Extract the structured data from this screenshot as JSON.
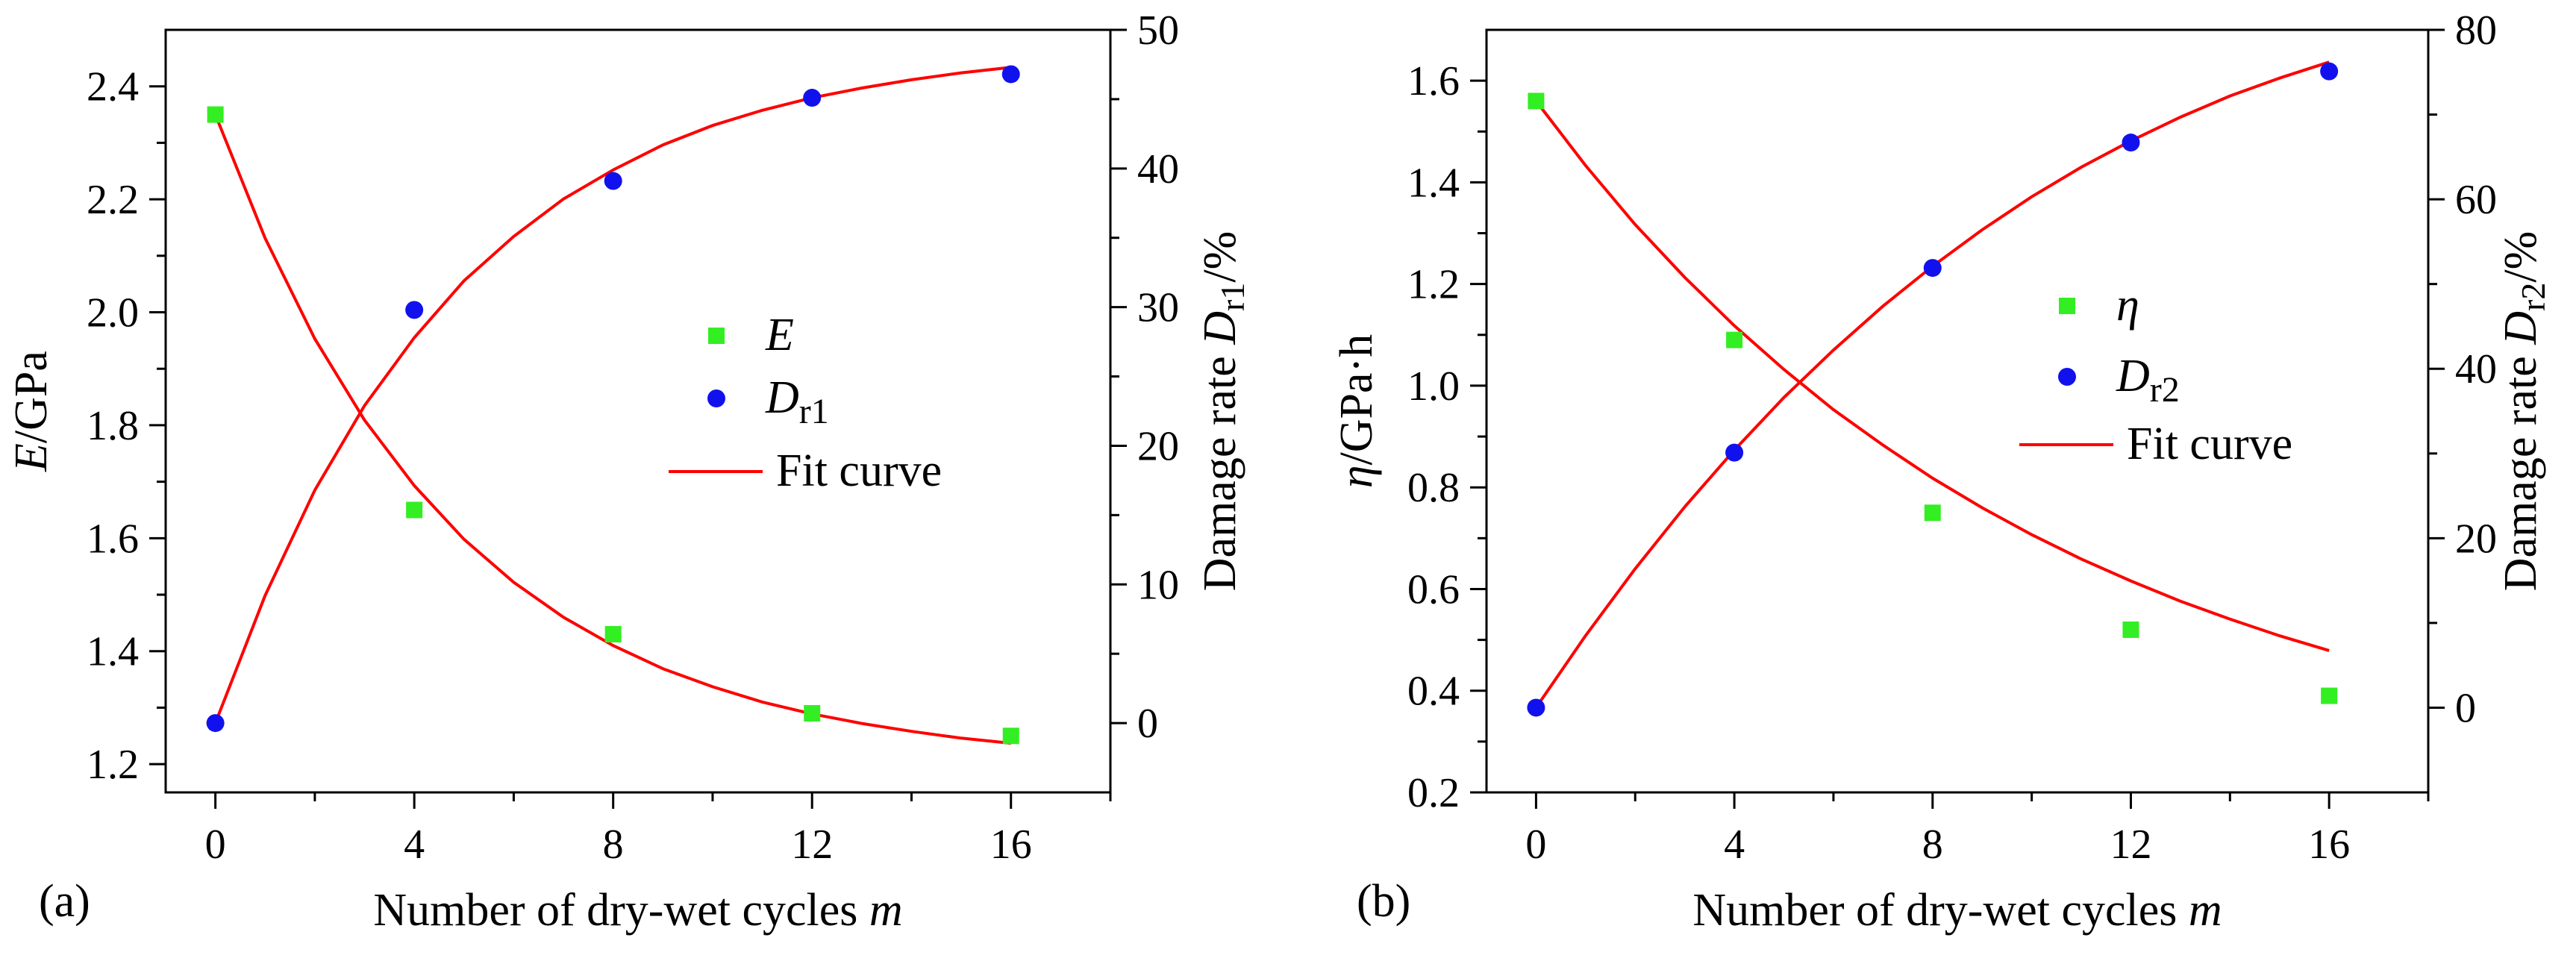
{
  "chart_data": [
    {
      "type": "scatter",
      "panel_label": "(a)",
      "xlabel": "Number of dry-wet cycles",
      "xlabel_var": "m",
      "x_ticks": [
        "0",
        "4",
        "8",
        "12",
        "16"
      ],
      "xlim": [
        -1,
        18
      ],
      "ylabel_var": "E",
      "ylabel_unit": "/GPa",
      "ylim": [
        1.15,
        2.5
      ],
      "y_ticks": [
        "1.2",
        "1.4",
        "1.6",
        "1.8",
        "2.0",
        "2.2",
        "2.4"
      ],
      "y2label_prefix": "Damage rate ",
      "y2label_var": "D",
      "y2label_sub": "r1",
      "y2label_suffix": "/%",
      "y2lim": [
        -5,
        50
      ],
      "y2_ticks": [
        "0",
        "10",
        "20",
        "30",
        "40",
        "50"
      ],
      "legend": {
        "marker1_var": "E",
        "marker2_var": "D",
        "marker2_sub": "r1",
        "line_label": "Fit curve",
        "position": "center-right"
      },
      "series": [
        {
          "name": "E",
          "axis": "left",
          "marker": "square",
          "color": "#33ee22",
          "x": [
            0,
            4,
            8,
            12,
            16
          ],
          "y": [
            2.35,
            1.65,
            1.43,
            1.29,
            1.25
          ]
        },
        {
          "name": "Dr1",
          "axis": "right",
          "marker": "circle",
          "color": "#1111ee",
          "x": [
            0,
            4,
            8,
            12,
            16
          ],
          "y": [
            0,
            29.8,
            39.1,
            45.1,
            46.8
          ]
        }
      ],
      "fits": [
        {
          "name": "E fit",
          "axis": "left",
          "color": "#ff0000",
          "x": [
            0,
            1,
            2,
            3,
            4,
            5,
            6,
            7,
            8,
            9,
            10,
            11,
            12,
            13,
            14,
            15,
            16
          ],
          "y": [
            2.35,
            2.131,
            1.953,
            1.809,
            1.693,
            1.598,
            1.522,
            1.46,
            1.41,
            1.369,
            1.337,
            1.31,
            1.289,
            1.272,
            1.258,
            1.246,
            1.237
          ]
        },
        {
          "name": "Dr1 fit",
          "axis": "right",
          "color": "#ff0000",
          "x": [
            0,
            1,
            2,
            3,
            4,
            5,
            6,
            7,
            8,
            9,
            10,
            11,
            12,
            13,
            14,
            15,
            16
          ],
          "y": [
            0,
            9.2,
            16.8,
            22.9,
            27.8,
            31.9,
            35.1,
            37.8,
            39.9,
            41.7,
            43.1,
            44.2,
            45.1,
            45.8,
            46.4,
            46.9,
            47.3
          ]
        }
      ]
    },
    {
      "type": "scatter",
      "panel_label": "(b)",
      "xlabel": "Number of dry-wet cycles",
      "xlabel_var": "m",
      "x_ticks": [
        "0",
        "4",
        "8",
        "12",
        "16"
      ],
      "xlim": [
        -1,
        18
      ],
      "ylabel_var": "η",
      "ylabel_unit": "/GPa·h",
      "ylim": [
        0.2,
        1.7
      ],
      "y_ticks": [
        "0.2",
        "0.4",
        "0.6",
        "0.8",
        "1.0",
        "1.2",
        "1.4",
        "1.6"
      ],
      "y2label_prefix": "Damage rate ",
      "y2label_var": "D",
      "y2label_sub": "r2",
      "y2label_suffix": "/%",
      "y2lim": [
        -10,
        80
      ],
      "y2_ticks": [
        "0",
        "20",
        "40",
        "60",
        "80"
      ],
      "legend": {
        "marker1_var": "η",
        "marker2_var": "D",
        "marker2_sub": "r2",
        "line_label": "Fit curve",
        "position": "center-right"
      },
      "series": [
        {
          "name": "η",
          "axis": "left",
          "marker": "square",
          "color": "#33ee22",
          "x": [
            0,
            4,
            8,
            12,
            16
          ],
          "y": [
            1.56,
            1.09,
            0.75,
            0.52,
            0.39
          ]
        },
        {
          "name": "Dr2",
          "axis": "right",
          "marker": "circle",
          "color": "#1111ee",
          "x": [
            0,
            4,
            8,
            12,
            16
          ],
          "y": [
            0,
            30.1,
            51.9,
            66.7,
            75.1
          ]
        }
      ],
      "fits": [
        {
          "name": "η fit",
          "axis": "left",
          "color": "#ff0000",
          "x": [
            0,
            1,
            2,
            3,
            4,
            5,
            6,
            7,
            8,
            9,
            10,
            11,
            12,
            13,
            14,
            15,
            16
          ],
          "y": [
            1.56,
            1.433,
            1.317,
            1.213,
            1.118,
            1.032,
            0.953,
            0.883,
            0.818,
            0.76,
            0.707,
            0.659,
            0.616,
            0.576,
            0.541,
            0.508,
            0.479
          ]
        },
        {
          "name": "Dr2 fit",
          "axis": "right",
          "color": "#ff0000",
          "x": [
            0,
            1,
            2,
            3,
            4,
            5,
            6,
            7,
            8,
            9,
            10,
            11,
            12,
            13,
            14,
            15,
            16
          ],
          "y": [
            0,
            8.5,
            16.4,
            23.7,
            30.4,
            36.6,
            42.2,
            47.4,
            52.1,
            56.4,
            60.3,
            63.8,
            66.9,
            69.7,
            72.2,
            74.3,
            76.2
          ]
        }
      ]
    }
  ]
}
